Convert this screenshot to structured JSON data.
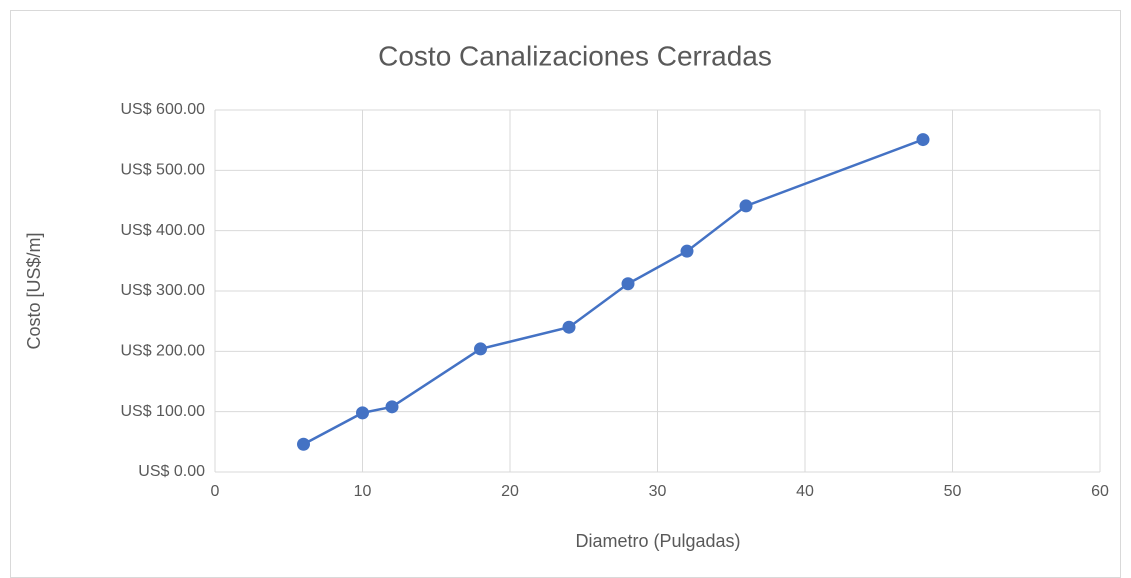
{
  "chart_data": {
    "type": "line",
    "title": "Costo Canalizaciones Cerradas",
    "x_label": "Diametro (Pulgadas)",
    "y_label": "Costo [US$/m]",
    "series": [
      {
        "name": "Costo",
        "color": "#4472c4",
        "x": [
          6,
          10,
          12,
          18,
          24,
          28,
          32,
          36,
          48
        ],
        "values": [
          46,
          98,
          108,
          204,
          240,
          312,
          366,
          441,
          551
        ]
      }
    ],
    "xlim": [
      0,
      60
    ],
    "xticks": [
      0,
      10,
      20,
      30,
      40,
      50,
      60
    ],
    "ylim": [
      0,
      600
    ],
    "yticks": [
      {
        "value": 0,
        "label": "US$ 0.00"
      },
      {
        "value": 100,
        "label": "US$ 100.00"
      },
      {
        "value": 200,
        "label": "US$ 200.00"
      },
      {
        "value": 300,
        "label": "US$ 300.00"
      },
      {
        "value": 400,
        "label": "US$ 400.00"
      },
      {
        "value": 500,
        "label": "US$ 500.00"
      },
      {
        "value": 600,
        "label": "US$ 600.00"
      }
    ],
    "grid": true
  }
}
